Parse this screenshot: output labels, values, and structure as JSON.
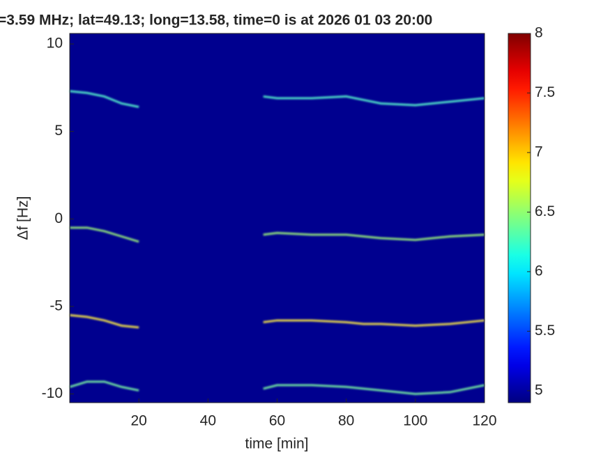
{
  "chart_data": {
    "type": "spectrogram",
    "title": "=3.59 MHz;  lat=49.13; long=13.58, time=0 is at 2026 01 03 20:00",
    "xlabel": "time [min]",
    "ylabel": "Δf [Hz]",
    "xlim": [
      0,
      120
    ],
    "xticks": [
      20,
      40,
      60,
      80,
      100,
      120
    ],
    "ylim": [
      -10.5,
      10.6
    ],
    "yticks": [
      -10,
      -5,
      0,
      5,
      10
    ],
    "background": "#00008f",
    "colormap": "jet",
    "clim": [
      4.9,
      8
    ],
    "cticks": [
      5,
      5.5,
      6,
      6.5,
      7,
      7.5,
      8
    ],
    "x": [
      0,
      5,
      10,
      15,
      20,
      null,
      56,
      60,
      70,
      80,
      85,
      90,
      100,
      110,
      120
    ],
    "series": [
      {
        "color": "#4fe0c8",
        "values": [
          7.3,
          7.2,
          7.0,
          6.6,
          6.4,
          null,
          7.0,
          6.9,
          6.9,
          7.0,
          6.8,
          6.6,
          6.5,
          6.7,
          6.9
        ]
      },
      {
        "color": "#8fe07a",
        "values": [
          -0.5,
          -0.5,
          -0.7,
          -1.0,
          -1.3,
          null,
          -0.9,
          -0.8,
          -0.9,
          -0.9,
          -1.0,
          -1.1,
          -1.2,
          -1.0,
          -0.9
        ]
      },
      {
        "color": "#e8d84a",
        "values": [
          -5.5,
          -5.6,
          -5.8,
          -6.1,
          -6.2,
          null,
          -5.9,
          -5.8,
          -5.8,
          -5.9,
          -6.0,
          -6.0,
          -6.1,
          -6.0,
          -5.8
        ]
      },
      {
        "color": "#6fe0a0",
        "values": [
          -9.6,
          -9.3,
          -9.3,
          -9.6,
          -9.8,
          null,
          -9.7,
          -9.5,
          -9.5,
          -9.6,
          -9.7,
          -9.8,
          -10.0,
          -9.9,
          -9.5
        ]
      }
    ]
  }
}
